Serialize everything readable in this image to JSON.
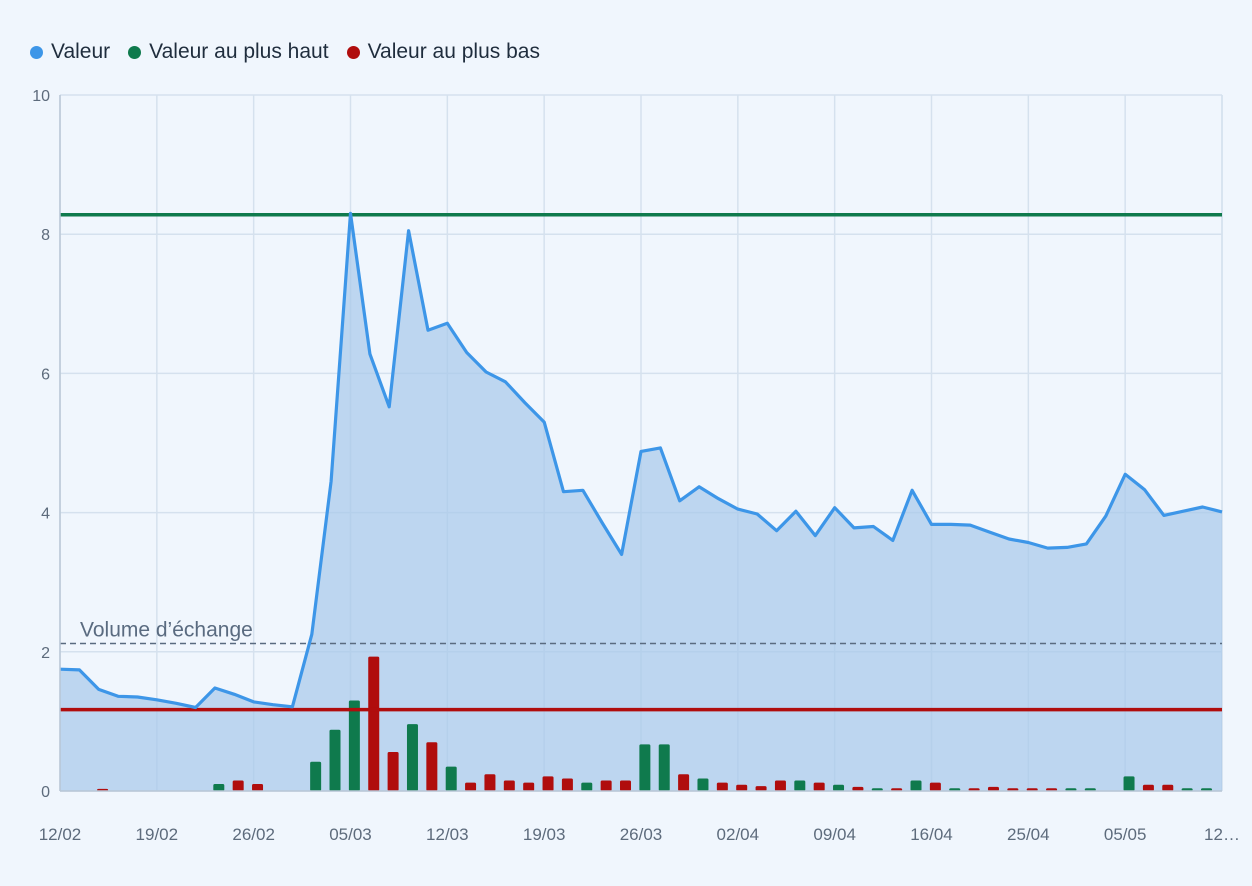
{
  "chart_data": {
    "type": "line",
    "legend": [
      {
        "label": "Valeur",
        "color": "#3d96e8"
      },
      {
        "label": "Valeur au plus haut",
        "color": "#0f7a4d"
      },
      {
        "label": "Valeur au plus bas",
        "color": "#b00d0d"
      }
    ],
    "legend_position": "top-left",
    "ylim": [
      0,
      10
    ],
    "y_ticks": [
      "0",
      "2",
      "4",
      "6",
      "8",
      "10"
    ],
    "x_ticks": [
      "12/02",
      "19/02",
      "26/02",
      "05/03",
      "12/03",
      "19/03",
      "26/03",
      "02/04",
      "09/04",
      "16/04",
      "25/04",
      "05/05",
      "12…"
    ],
    "grid": true,
    "series": [
      {
        "name": "Valeur",
        "color": "#3d96e8",
        "values": [
          1.75,
          1.74,
          1.46,
          1.36,
          1.35,
          1.31,
          1.26,
          1.2,
          1.48,
          1.39,
          1.28,
          1.24,
          1.21,
          2.25,
          4.45,
          8.3,
          6.28,
          5.52,
          8.05,
          6.62,
          6.72,
          6.3,
          6.02,
          5.88,
          5.58,
          5.3,
          4.3,
          4.32,
          3.85,
          3.4,
          4.88,
          4.93,
          4.17,
          4.37,
          4.2,
          4.05,
          3.98,
          3.74,
          4.02,
          3.67,
          4.07,
          3.78,
          3.8,
          3.6,
          4.32,
          3.83,
          3.83,
          3.82,
          3.72,
          3.62,
          3.57,
          3.49,
          3.5,
          3.55,
          3.95,
          4.55,
          4.33,
          3.96,
          4.02,
          4.08,
          4.01
        ]
      }
    ],
    "high_line": {
      "name": "Valeur au plus haut",
      "value": 8.28,
      "color": "#0f7a4d"
    },
    "low_line": {
      "name": "Valeur au plus bas",
      "value": 1.17,
      "color": "#b00d0d"
    },
    "volume": {
      "label": "Volume d’échange",
      "reference": 2.12,
      "bars": [
        {
          "v": 0,
          "c": "g"
        },
        {
          "v": 0,
          "c": "g"
        },
        {
          "v": 0.03,
          "c": "r"
        },
        {
          "v": 0,
          "c": "g"
        },
        {
          "v": 0,
          "c": "g"
        },
        {
          "v": 0,
          "c": "g"
        },
        {
          "v": 0,
          "c": "g"
        },
        {
          "v": 0,
          "c": "g"
        },
        {
          "v": 0.1,
          "c": "g"
        },
        {
          "v": 0.15,
          "c": "r"
        },
        {
          "v": 0.1,
          "c": "r"
        },
        {
          "v": 0,
          "c": "g"
        },
        {
          "v": 0,
          "c": "g"
        },
        {
          "v": 0.42,
          "c": "g"
        },
        {
          "v": 0.88,
          "c": "g"
        },
        {
          "v": 1.3,
          "c": "g"
        },
        {
          "v": 1.93,
          "c": "r"
        },
        {
          "v": 0.56,
          "c": "r"
        },
        {
          "v": 0.96,
          "c": "g"
        },
        {
          "v": 0.7,
          "c": "r"
        },
        {
          "v": 0.35,
          "c": "g"
        },
        {
          "v": 0.12,
          "c": "r"
        },
        {
          "v": 0.24,
          "c": "r"
        },
        {
          "v": 0.15,
          "c": "r"
        },
        {
          "v": 0.12,
          "c": "r"
        },
        {
          "v": 0.21,
          "c": "r"
        },
        {
          "v": 0.18,
          "c": "r"
        },
        {
          "v": 0.12,
          "c": "g"
        },
        {
          "v": 0.15,
          "c": "r"
        },
        {
          "v": 0.15,
          "c": "r"
        },
        {
          "v": 0.67,
          "c": "g"
        },
        {
          "v": 0.67,
          "c": "g"
        },
        {
          "v": 0.24,
          "c": "r"
        },
        {
          "v": 0.18,
          "c": "g"
        },
        {
          "v": 0.12,
          "c": "r"
        },
        {
          "v": 0.09,
          "c": "r"
        },
        {
          "v": 0.07,
          "c": "r"
        },
        {
          "v": 0.15,
          "c": "r"
        },
        {
          "v": 0.15,
          "c": "g"
        },
        {
          "v": 0.12,
          "c": "r"
        },
        {
          "v": 0.09,
          "c": "g"
        },
        {
          "v": 0.06,
          "c": "r"
        },
        {
          "v": 0.04,
          "c": "g"
        },
        {
          "v": 0.04,
          "c": "r"
        },
        {
          "v": 0.15,
          "c": "g"
        },
        {
          "v": 0.12,
          "c": "r"
        },
        {
          "v": 0.04,
          "c": "g"
        },
        {
          "v": 0.04,
          "c": "r"
        },
        {
          "v": 0.06,
          "c": "r"
        },
        {
          "v": 0.04,
          "c": "r"
        },
        {
          "v": 0.04,
          "c": "r"
        },
        {
          "v": 0.04,
          "c": "r"
        },
        {
          "v": 0.04,
          "c": "g"
        },
        {
          "v": 0.04,
          "c": "g"
        },
        {
          "v": 0,
          "c": "g"
        },
        {
          "v": 0.21,
          "c": "g"
        },
        {
          "v": 0.09,
          "c": "r"
        },
        {
          "v": 0.09,
          "c": "r"
        },
        {
          "v": 0.04,
          "c": "g"
        },
        {
          "v": 0.04,
          "c": "g"
        },
        {
          "v": 0,
          "c": "g"
        }
      ]
    }
  }
}
